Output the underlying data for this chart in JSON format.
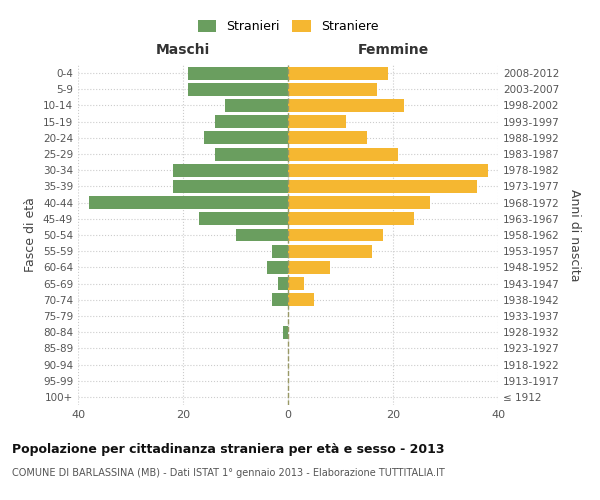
{
  "age_groups": [
    "100+",
    "95-99",
    "90-94",
    "85-89",
    "80-84",
    "75-79",
    "70-74",
    "65-69",
    "60-64",
    "55-59",
    "50-54",
    "45-49",
    "40-44",
    "35-39",
    "30-34",
    "25-29",
    "20-24",
    "15-19",
    "10-14",
    "5-9",
    "0-4"
  ],
  "birth_years": [
    "≤ 1912",
    "1913-1917",
    "1918-1922",
    "1923-1927",
    "1928-1932",
    "1933-1937",
    "1938-1942",
    "1943-1947",
    "1948-1952",
    "1953-1957",
    "1958-1962",
    "1963-1967",
    "1968-1972",
    "1973-1977",
    "1978-1982",
    "1983-1987",
    "1988-1992",
    "1993-1997",
    "1998-2002",
    "2003-2007",
    "2008-2012"
  ],
  "maschi": [
    0,
    0,
    0,
    0,
    1,
    0,
    3,
    2,
    4,
    3,
    10,
    17,
    38,
    22,
    22,
    14,
    16,
    14,
    12,
    19,
    19
  ],
  "femmine": [
    0,
    0,
    0,
    0,
    0,
    0,
    5,
    3,
    8,
    16,
    18,
    24,
    27,
    36,
    38,
    21,
    15,
    11,
    22,
    17,
    19
  ],
  "male_color": "#6a9e5f",
  "female_color": "#f5b731",
  "grid_color": "#cccccc",
  "title": "Popolazione per cittadinanza straniera per età e sesso - 2013",
  "subtitle": "COMUNE DI BARLASSINA (MB) - Dati ISTAT 1° gennaio 2013 - Elaborazione TUTTITALIA.IT",
  "xlabel_left": "Maschi",
  "xlabel_right": "Femmine",
  "ylabel_left": "Fasce di età",
  "ylabel_right": "Anni di nascita",
  "legend_male": "Stranieri",
  "legend_female": "Straniere",
  "xlim": 40,
  "bar_height": 0.8
}
